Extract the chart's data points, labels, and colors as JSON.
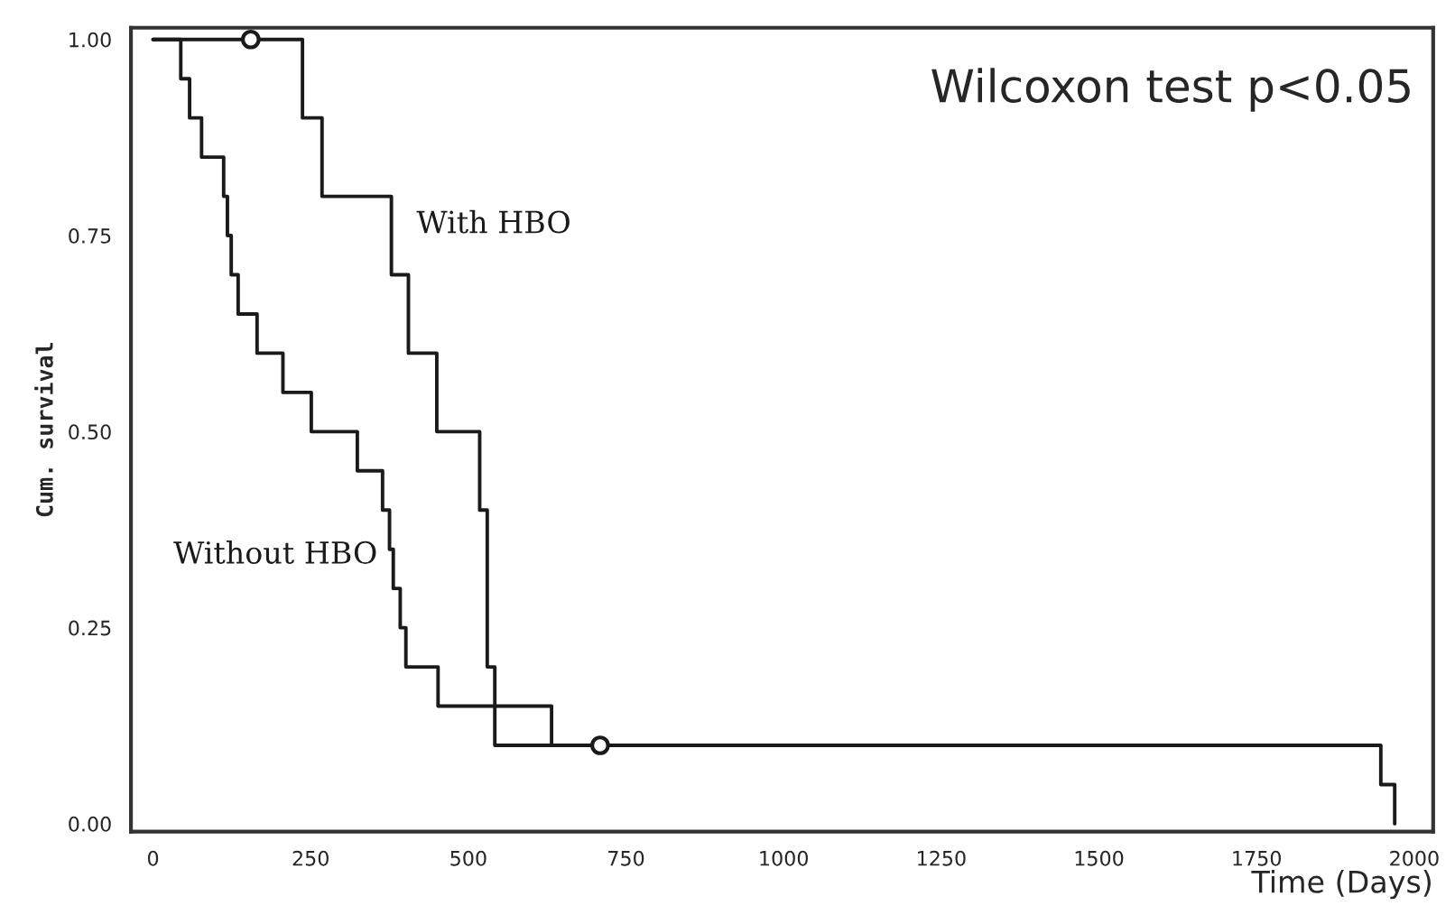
{
  "chart_data": {
    "type": "step",
    "xlabel": "Time (Days)",
    "ylabel": "Cum. survival",
    "annotations": [
      "Wilcoxon test p<0.05"
    ],
    "series": [
      {
        "name": "With HBO",
        "color": "#1a1a1a",
        "x": [
          0,
          237,
          268,
          378,
          405,
          450,
          518,
          530,
          542,
          1947,
          1969
        ],
        "values": [
          1.0,
          0.9,
          0.8,
          0.7,
          0.6,
          0.5,
          0.4,
          0.2,
          0.1,
          0.05,
          0.0
        ]
      },
      {
        "name": "Without HBO",
        "color": "#1a1a1a",
        "x": [
          0,
          44,
          58,
          77,
          112,
          118,
          124,
          135,
          165,
          206,
          251,
          324,
          364,
          375,
          381,
          392,
          401,
          452,
          632
        ],
        "values": [
          1.0,
          0.95,
          0.9,
          0.85,
          0.8,
          0.75,
          0.7,
          0.65,
          0.6,
          0.55,
          0.5,
          0.45,
          0.4,
          0.35,
          0.3,
          0.25,
          0.2,
          0.15,
          0.1
        ]
      },
      {
        "type": "scatter",
        "marker": "circle",
        "color": "#1a1a1a",
        "x": [
          155,
          709
        ],
        "values": [
          1.0,
          0.1
        ]
      }
    ],
    "xlim": [
      -35,
      2030
    ],
    "ylim": [
      -0.01,
      1.015
    ],
    "xticks": [
      0,
      250,
      500,
      750,
      1000,
      1250,
      1500,
      1750,
      2000
    ],
    "yticks": [
      {
        "value": 0,
        "label": "0.00"
      },
      {
        "value": 0.25,
        "label": "0.25"
      },
      {
        "value": 0.5,
        "label": "0.50"
      },
      {
        "value": 0.75,
        "label": "0.75"
      },
      {
        "value": 1,
        "label": "1.00"
      }
    ],
    "grid": false,
    "legend": false
  }
}
